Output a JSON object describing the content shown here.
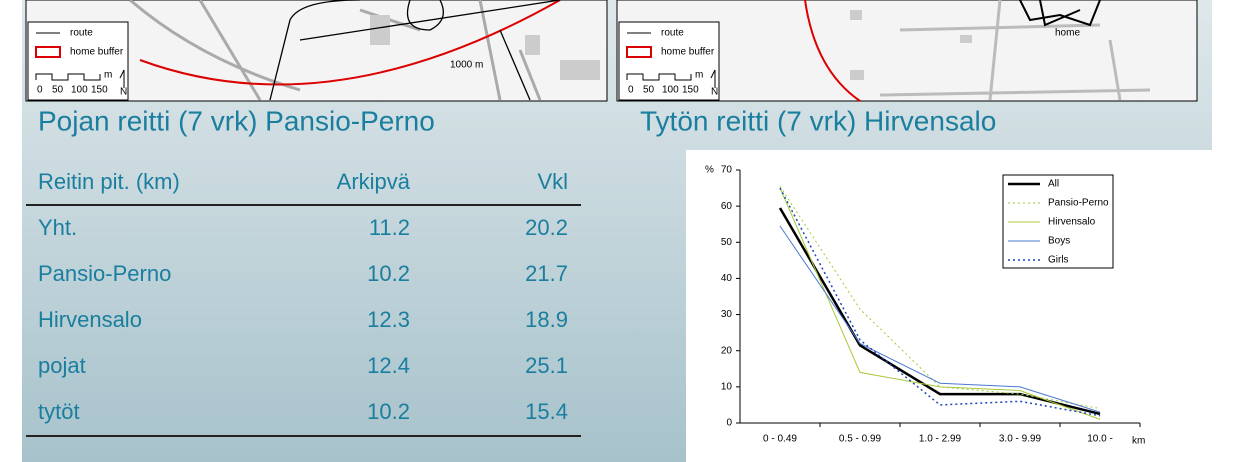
{
  "maps": [
    {
      "legend": {
        "route": "route",
        "buffer": "home buffer",
        "scale": [
          "0",
          "50",
          "100",
          "150"
        ],
        "unit": "m",
        "north": "N"
      },
      "label": "1000 m"
    },
    {
      "legend": {
        "route": "route",
        "buffer": "home buffer",
        "scale": [
          "0",
          "50",
          "100",
          "150"
        ],
        "unit": "m",
        "north": "N"
      },
      "label": "home"
    }
  ],
  "titles": [
    "Pojan reitti (7 vrk) Pansio-Perno",
    "Tytön reitti (7 vrk) Hirvensalo"
  ],
  "table": {
    "header": [
      "Reitin pit. (km)",
      "Arkipvä",
      "Vkl"
    ],
    "rows": [
      [
        "Yht.",
        11.2,
        20.2
      ],
      [
        "Pansio-Perno",
        10.2,
        21.7
      ],
      [
        "Hirvensalo",
        12.3,
        18.9
      ],
      [
        "pojat",
        12.4,
        25.1
      ],
      [
        "tytöt",
        10.2,
        15.4
      ]
    ]
  },
  "chart_data": {
    "type": "line",
    "y_label": "%",
    "x_label": "km",
    "categories": [
      "0 - 0.49",
      "0.5 - 0.99",
      "1.0 - 2.99",
      "3.0 - 9.99",
      "10.0 -"
    ],
    "series": [
      {
        "name": "All",
        "color": "#000000",
        "dash": "solid",
        "width": 2.5,
        "values": [
          59.5,
          21.5,
          8,
          8,
          2.5
        ]
      },
      {
        "name": "Pansio-Perno",
        "color": "#9acd32",
        "dash": "dotted",
        "width": 1,
        "values": [
          65.5,
          31.5,
          10,
          8,
          4
        ]
      },
      {
        "name": "Hirvensalo",
        "color": "#a8c83a",
        "dash": "solid",
        "width": 1,
        "values": [
          65,
          14,
          10,
          9,
          1
        ]
      },
      {
        "name": "Boys",
        "color": "#4a78d0",
        "dash": "solid",
        "width": 1,
        "values": [
          54.5,
          22,
          11,
          10,
          3
        ]
      },
      {
        "name": "Girls",
        "color": "#1f45b8",
        "dash": "dotted",
        "width": 1.5,
        "values": [
          65,
          23,
          5,
          6,
          2
        ]
      }
    ],
    "ylim": [
      0,
      70
    ],
    "yticks": [
      0,
      10,
      20,
      30,
      40,
      50,
      60,
      70
    ],
    "grid": false,
    "legend": "upper right"
  }
}
